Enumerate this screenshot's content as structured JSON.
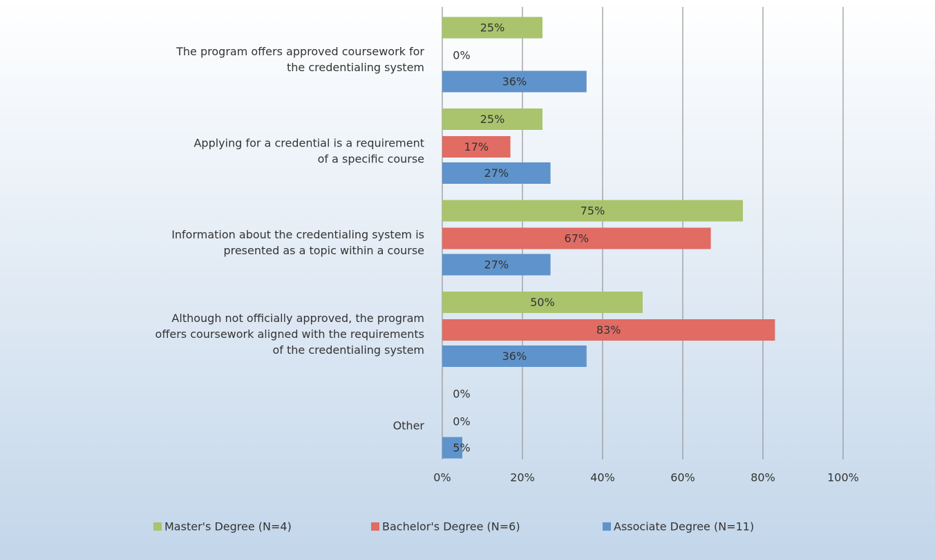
{
  "chart_data": {
    "type": "bar",
    "orientation": "horizontal",
    "categories": [
      [
        "The program offers approved coursework for",
        "the credentialing system"
      ],
      [
        "Applying for a credential is a requirement",
        "of a specific course"
      ],
      [
        "Information about the credentialing system is",
        "presented as a topic within a course"
      ],
      [
        "Although not officially approved, the program",
        "offers coursework aligned with the requirements",
        "of the credentialing system"
      ],
      [
        "Other"
      ]
    ],
    "series": [
      {
        "name": "Master's Degree (N=4)",
        "color": "#a9c46c",
        "values": [
          25,
          25,
          75,
          50,
          0
        ],
        "value_labels": [
          "25%",
          "25%",
          "75%",
          "50%",
          "0%"
        ]
      },
      {
        "name": "Bachelor's Degree (N=6)",
        "color": "#e06c64",
        "values": [
          0,
          17,
          67,
          83,
          0
        ],
        "value_labels": [
          "0%",
          "17%",
          "67%",
          "83%",
          "0%"
        ]
      },
      {
        "name": "Associate Degree (N=11)",
        "color": "#5f93cb",
        "values": [
          36,
          27,
          27,
          36,
          5
        ],
        "value_labels": [
          "36%",
          "27%",
          "27%",
          "36%",
          "5%"
        ]
      }
    ],
    "xlim": [
      0,
      100
    ],
    "xticks": [
      {
        "value": 0,
        "label": "0%"
      },
      {
        "value": 20,
        "label": "20%"
      },
      {
        "value": 40,
        "label": "40%"
      },
      {
        "value": 60,
        "label": "60%"
      },
      {
        "value": 80,
        "label": "80%"
      },
      {
        "value": 100,
        "label": "100%"
      }
    ],
    "grid": true,
    "legend": "bottom"
  }
}
